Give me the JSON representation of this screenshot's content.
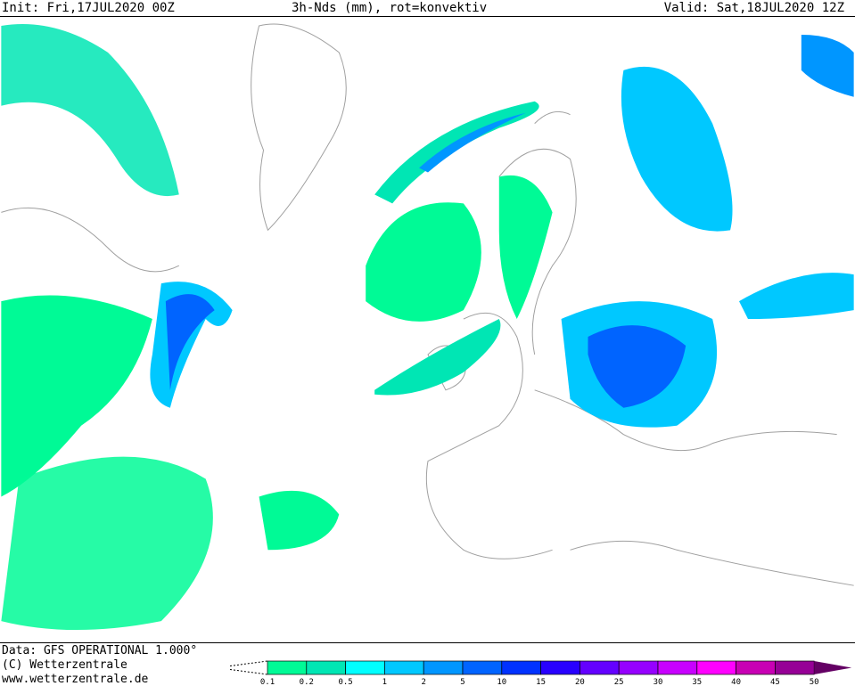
{
  "header": {
    "init": "Init: Fri,17JUL2020 00Z",
    "title": "3h-Nds (mm), rot=konvektiv",
    "valid": "Valid: Sat,18JUL2020 12Z"
  },
  "footer": {
    "data": "Data: GFS OPERATIONAL 1.000°",
    "copyright": "(C) Wetterzentrale",
    "url": "www.wetterzentrale.de"
  },
  "legend": {
    "labels": [
      "0.1",
      "0.2",
      "0.5",
      "1",
      "2",
      "5",
      "10",
      "15",
      "20",
      "25",
      "30",
      "35",
      "40",
      "45",
      "50"
    ],
    "colors": [
      "#00fa96",
      "#00e6b4",
      "#00ffff",
      "#00c8ff",
      "#0096ff",
      "#0064ff",
      "#0032ff",
      "#2800ff",
      "#6400ff",
      "#9600ff",
      "#c800ff",
      "#ff00ff",
      "#c800b4",
      "#960096"
    ],
    "overflow_color": "#640064"
  },
  "map": {
    "coastline_color": "#a0a0a0",
    "convective_color": "#e07030"
  }
}
